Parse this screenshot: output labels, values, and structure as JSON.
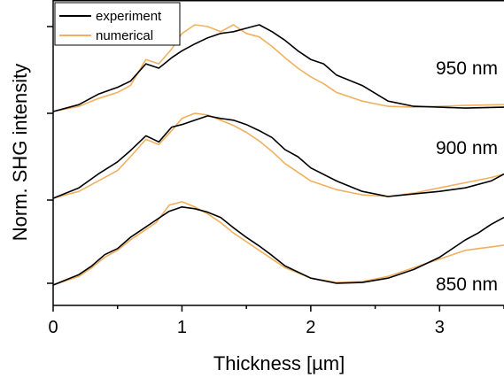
{
  "chart_data": {
    "type": "line",
    "title": "",
    "xlabel": "Thickness [µm]",
    "ylabel": "Norm. SHG intensity",
    "xlim": [
      0,
      3.5
    ],
    "x_ticks": [
      "0",
      "1",
      "2",
      "3"
    ],
    "y_ticks_labeled": false,
    "grid": false,
    "legend": {
      "placement": "top-left",
      "entries": [
        "experiment",
        "numerical"
      ]
    },
    "colors": {
      "experiment": "#000000",
      "numerical": "#f0b060"
    },
    "panels": [
      {
        "label": "950 nm",
        "offset": 2,
        "series": [
          {
            "name": "experiment",
            "x": [
              0.0,
              0.2,
              0.35,
              0.5,
              0.6,
              0.72,
              0.82,
              0.92,
              1.0,
              1.1,
              1.2,
              1.3,
              1.4,
              1.5,
              1.6,
              1.7,
              1.8,
              1.9,
              2.0,
              2.1,
              2.2,
              2.4,
              2.6,
              2.8,
              3.0,
              3.2,
              3.5
            ],
            "y": [
              0.0,
              0.08,
              0.2,
              0.28,
              0.35,
              0.55,
              0.5,
              0.62,
              0.7,
              0.78,
              0.85,
              0.9,
              0.92,
              0.96,
              1.0,
              0.92,
              0.82,
              0.7,
              0.6,
              0.55,
              0.42,
              0.3,
              0.12,
              0.06,
              0.05,
              0.04,
              0.05
            ]
          },
          {
            "name": "numerical",
            "x": [
              0.0,
              0.2,
              0.35,
              0.5,
              0.6,
              0.72,
              0.82,
              0.92,
              1.0,
              1.1,
              1.2,
              1.3,
              1.4,
              1.5,
              1.6,
              1.7,
              1.8,
              1.9,
              2.0,
              2.1,
              2.2,
              2.4,
              2.6,
              2.8,
              3.0,
              3.2,
              3.5
            ],
            "y": [
              0.0,
              0.06,
              0.15,
              0.22,
              0.3,
              0.6,
              0.55,
              0.72,
              0.9,
              1.0,
              0.98,
              0.92,
              1.0,
              0.9,
              0.86,
              0.75,
              0.62,
              0.5,
              0.4,
              0.32,
              0.22,
              0.12,
              0.06,
              0.05,
              0.06,
              0.07,
              0.08
            ]
          }
        ]
      },
      {
        "label": "900 nm",
        "offset": 1,
        "series": [
          {
            "name": "experiment",
            "x": [
              0.0,
              0.2,
              0.35,
              0.5,
              0.6,
              0.72,
              0.82,
              0.92,
              1.0,
              1.1,
              1.2,
              1.3,
              1.4,
              1.5,
              1.6,
              1.7,
              1.8,
              1.9,
              2.0,
              2.2,
              2.4,
              2.6,
              2.8,
              3.0,
              3.2,
              3.4,
              3.5
            ],
            "y": [
              0.0,
              0.12,
              0.28,
              0.42,
              0.55,
              0.72,
              0.65,
              0.82,
              0.85,
              0.9,
              0.95,
              0.92,
              0.9,
              0.85,
              0.78,
              0.7,
              0.56,
              0.48,
              0.35,
              0.2,
              0.08,
              0.02,
              0.05,
              0.08,
              0.12,
              0.2,
              0.28
            ]
          },
          {
            "name": "numerical",
            "x": [
              0.0,
              0.2,
              0.35,
              0.5,
              0.6,
              0.72,
              0.82,
              0.92,
              1.0,
              1.1,
              1.2,
              1.3,
              1.4,
              1.5,
              1.6,
              1.7,
              1.8,
              1.9,
              2.0,
              2.2,
              2.4,
              2.6,
              2.8,
              3.0,
              3.2,
              3.4,
              3.5
            ],
            "y": [
              0.0,
              0.08,
              0.2,
              0.32,
              0.48,
              0.68,
              0.62,
              0.78,
              0.92,
              0.98,
              0.96,
              0.9,
              0.84,
              0.76,
              0.66,
              0.54,
              0.4,
              0.3,
              0.2,
              0.1,
              0.04,
              0.02,
              0.06,
              0.12,
              0.18,
              0.24,
              0.28
            ]
          }
        ]
      },
      {
        "label": "850 nm",
        "offset": 0,
        "series": [
          {
            "name": "experiment",
            "x": [
              0.0,
              0.2,
              0.3,
              0.4,
              0.5,
              0.6,
              0.7,
              0.8,
              0.9,
              1.0,
              1.1,
              1.2,
              1.3,
              1.4,
              1.5,
              1.6,
              1.7,
              1.8,
              2.0,
              2.2,
              2.4,
              2.6,
              2.8,
              3.0,
              3.2,
              3.3,
              3.4,
              3.5
            ],
            "y": [
              0.0,
              0.12,
              0.22,
              0.35,
              0.42,
              0.55,
              0.65,
              0.75,
              0.85,
              0.9,
              0.88,
              0.84,
              0.78,
              0.66,
              0.55,
              0.45,
              0.34,
              0.22,
              0.08,
              0.02,
              0.03,
              0.08,
              0.18,
              0.32,
              0.52,
              0.6,
              0.7,
              0.78
            ]
          },
          {
            "name": "numerical",
            "x": [
              0.0,
              0.2,
              0.3,
              0.4,
              0.5,
              0.6,
              0.7,
              0.8,
              0.9,
              1.0,
              1.1,
              1.2,
              1.3,
              1.4,
              1.5,
              1.6,
              1.7,
              1.8,
              2.0,
              2.2,
              2.4,
              2.6,
              2.8,
              3.0,
              3.2,
              3.3,
              3.4,
              3.5
            ],
            "y": [
              0.0,
              0.1,
              0.2,
              0.32,
              0.4,
              0.52,
              0.62,
              0.72,
              0.92,
              0.96,
              0.9,
              0.82,
              0.72,
              0.6,
              0.5,
              0.4,
              0.3,
              0.2,
              0.08,
              0.03,
              0.04,
              0.1,
              0.2,
              0.3,
              0.4,
              0.42,
              0.44,
              0.46
            ]
          }
        ]
      }
    ]
  }
}
